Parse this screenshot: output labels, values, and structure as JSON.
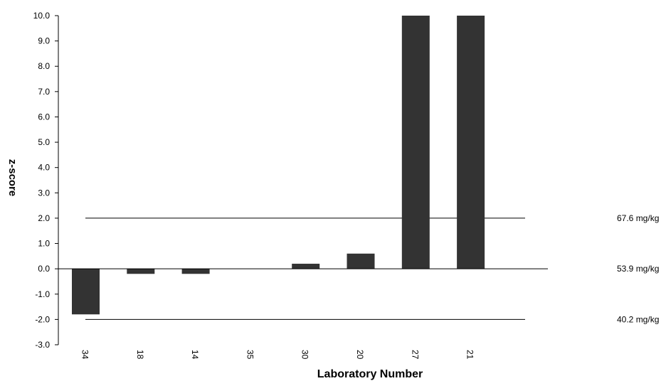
{
  "chart_data": {
    "type": "bar",
    "xlabel": "Laboratory Number",
    "ylabel": "z-score",
    "ylim": [
      -3.0,
      10.0
    ],
    "yticks": [
      "-3.0",
      "-2.0",
      "-1.0",
      "0.0",
      "1.0",
      "2.0",
      "3.0",
      "4.0",
      "5.0",
      "6.0",
      "7.0",
      "8.0",
      "9.0",
      "10.0"
    ],
    "categories": [
      "34",
      "18",
      "14",
      "35",
      "30",
      "20",
      "27",
      "21"
    ],
    "values": [
      -1.8,
      -0.2,
      -0.2,
      0.0,
      0.2,
      0.6,
      10.0,
      10.0
    ],
    "bar_color": "#333333",
    "grid": false,
    "legend": "none",
    "reference_lines": [
      {
        "y": 2.0,
        "label": "67.6 mg/kg"
      },
      {
        "y": 0.0,
        "label": "53.9 mg/kg"
      },
      {
        "y": -2.0,
        "label": "40.2 mg/kg"
      }
    ]
  }
}
